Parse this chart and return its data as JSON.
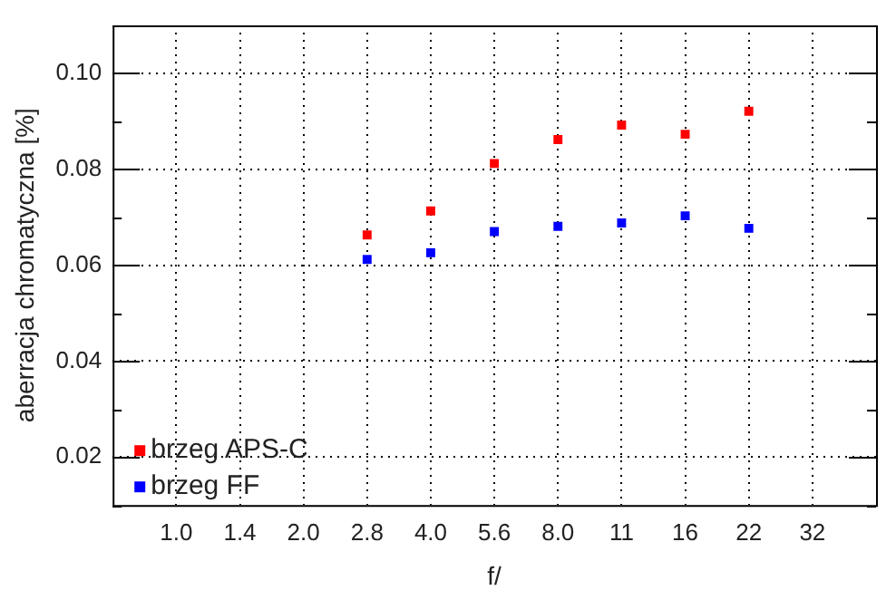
{
  "chart_data": {
    "type": "scatter",
    "xlabel": "f/",
    "ylabel": "aberracja chromatyczna [%]",
    "categories": [
      "1.0",
      "1.4",
      "2.0",
      "2.8",
      "4.0",
      "5.6",
      "8.0",
      "11",
      "16",
      "22",
      "32"
    ],
    "series": [
      {
        "name": "brzeg APS-C",
        "color": "#ff0000",
        "values": [
          null,
          null,
          null,
          0.0663,
          0.0713,
          0.0812,
          0.0862,
          0.0892,
          0.0873,
          0.0921,
          null
        ]
      },
      {
        "name": "brzeg FF",
        "color": "#0000ff",
        "values": [
          null,
          null,
          null,
          0.0612,
          0.0626,
          0.067,
          0.0681,
          0.0688,
          0.0703,
          0.0677,
          null
        ]
      }
    ],
    "ylim": [
      0.01,
      0.11
    ],
    "yticks": [
      {
        "value": 0.01,
        "label": null
      },
      0.02,
      {
        "value": 0.03,
        "label": null
      },
      0.04,
      {
        "value": 0.05,
        "label": null
      },
      0.06,
      {
        "value": 0.07,
        "label": null
      },
      0.08,
      {
        "value": 0.09,
        "label": null
      },
      {
        "value": 0.1,
        "label": "0.10"
      },
      {
        "value": 0.11,
        "label": null
      }
    ],
    "grid": true,
    "line_style": "dotted",
    "legend": "bottom left",
    "marker": "square"
  }
}
